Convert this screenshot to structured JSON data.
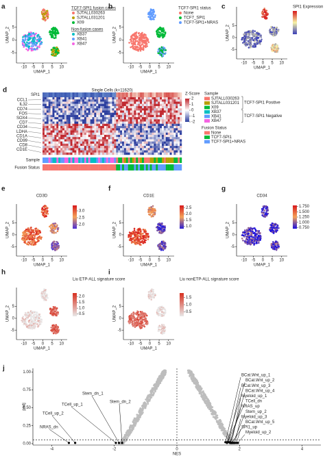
{
  "panels": {
    "a": {
      "letter": "a",
      "xlabel": "UMAP_1",
      "ylabel": "UMAP_2",
      "xlim": [
        -14,
        13
      ],
      "ylim": [
        -9,
        13
      ],
      "xticks": [
        -10,
        -5,
        0,
        5,
        10
      ],
      "yticks": [
        -5,
        0,
        5
      ],
      "legend": [
        {
          "heading": "TCF7-SPI1 fusion cases",
          "items": [
            {
              "name": "SJTALL030263",
              "color": "#f8766d"
            },
            {
              "name": "SJTALL031201",
              "color": "#b79f00"
            },
            {
              "name": "X09",
              "color": "#00ba38"
            }
          ]
        },
        {
          "heading": "Non-fusion cases",
          "items": [
            {
              "name": "XB37",
              "color": "#00bfc4"
            },
            {
              "name": "XB41",
              "color": "#619cff"
            },
            {
              "name": "XB47",
              "color": "#f564e3"
            }
          ]
        }
      ]
    },
    "b": {
      "letter": "b",
      "xlabel": "UMAP_1",
      "ylabel": "UMAP_2",
      "xlim": [
        -14,
        13
      ],
      "ylim": [
        -9,
        13
      ],
      "xticks": [
        -10,
        -5,
        0,
        5,
        10
      ],
      "yticks": [
        -5,
        0,
        5
      ],
      "legend": [
        {
          "heading": "TCF7-SPI1 status",
          "items": [
            {
              "name": "None",
              "color": "#f8766d"
            },
            {
              "name": "TCF7_SPI1",
              "color": "#00ba38"
            },
            {
              "name": "TCF7-SPI1+NRAS",
              "color": "#619cff"
            }
          ]
        }
      ]
    },
    "c": {
      "letter": "c",
      "xlabel": "UMAP_1",
      "ylabel": "UMAP_2",
      "xlim": [
        -14,
        13
      ],
      "ylim": [
        -9,
        13
      ],
      "xticks": [
        -10,
        -5,
        0,
        5,
        10
      ],
      "yticks": [
        -5,
        0,
        5
      ],
      "colorbar": {
        "title": "SPI1 Expression",
        "colors": [
          "#3b3fb8",
          "#f6f3a6",
          "#d7191c"
        ]
      }
    },
    "e": {
      "letter": "e",
      "title": "CD3D",
      "xlabel": "UMAP_1",
      "ylabel": "UMAP_2",
      "xlim": [
        -14,
        13
      ],
      "ylim": [
        -9,
        13
      ],
      "xticks": [
        -10,
        -5,
        0,
        5,
        10
      ],
      "yticks": [
        -5,
        0,
        5
      ],
      "colorbar": {
        "lim": [
          1.7,
          3.4
        ],
        "ticks": [
          {
            "value": 2.0,
            "label": "2.0"
          },
          {
            "value": 2.5,
            "label": "2.5"
          },
          {
            "value": 3.0,
            "label": "3.0"
          }
        ],
        "colors": [
          "#4b2fd6",
          "#f4a259",
          "#d7191c"
        ]
      }
    },
    "f": {
      "letter": "f",
      "title": "CD1E",
      "xlabel": "UMAP_1",
      "ylabel": "UMAP_2",
      "xlim": [
        -14,
        13
      ],
      "ylim": [
        -9,
        13
      ],
      "xticks": [
        -10,
        -5,
        0,
        5,
        10
      ],
      "yticks": [
        -5,
        0,
        5
      ],
      "colorbar": {
        "lim": [
          0.8,
          2.7
        ],
        "ticks": [
          {
            "value": 1.0,
            "label": "1.0"
          },
          {
            "value": 1.5,
            "label": "1.5"
          },
          {
            "value": 2.0,
            "label": "2.0"
          },
          {
            "value": 2.5,
            "label": "2.5"
          }
        ],
        "colors": [
          "#2a1fd6",
          "#f4a259",
          "#d7191c"
        ]
      }
    },
    "g": {
      "letter": "g",
      "title": "CD34",
      "xlabel": "UMAP_1",
      "ylabel": "UMAP_2",
      "xlim": [
        -14,
        13
      ],
      "ylim": [
        -9,
        13
      ],
      "xticks": [
        -10,
        -5,
        0,
        5,
        10
      ],
      "yticks": [
        -5,
        0,
        5
      ],
      "colorbar": {
        "lim": [
          0.7,
          1.8
        ],
        "ticks": [
          {
            "value": 0.75,
            "label": "0.750"
          },
          {
            "value": 1.0,
            "label": "1.000"
          },
          {
            "value": 1.25,
            "label": "1.250"
          },
          {
            "value": 1.5,
            "label": "1.500"
          },
          {
            "value": 1.75,
            "label": "1.750"
          }
        ],
        "colors": [
          "#1a10e0",
          "#f4a259",
          "#d7191c"
        ]
      }
    },
    "h": {
      "letter": "h",
      "title": "Liu ETP-ALL signature score",
      "xlabel": "UMAP_1",
      "ylabel": "UMAP_2",
      "xlim": [
        -14,
        13
      ],
      "ylim": [
        -9,
        13
      ],
      "xticks": [
        -10,
        -5,
        0,
        5,
        10
      ],
      "yticks": [
        -5,
        0,
        5
      ],
      "colorbar": {
        "lim": [
          0.3,
          2.3
        ],
        "ticks": [
          {
            "value": 0.5,
            "label": "0.5"
          },
          {
            "value": 1.0,
            "label": "1.0"
          },
          {
            "value": 1.5,
            "label": "1.5"
          },
          {
            "value": 2.0,
            "label": "2.0"
          }
        ],
        "colors": [
          "#e8e8e8",
          "#d7301f"
        ]
      }
    },
    "i": {
      "letter": "i",
      "title": "Liu nonETP-ALL signature score",
      "xlabel": "UMAP_1",
      "ylabel": "UMAP_2",
      "xlim": [
        -14,
        13
      ],
      "ylim": [
        -9,
        13
      ],
      "xticks": [
        -10,
        -5,
        0,
        5,
        10
      ],
      "yticks": [
        -5,
        0,
        5
      ],
      "colorbar": {
        "lim": [
          0.2,
          1.8
        ],
        "ticks": [
          0.5,
          {
            "value": 1.0,
            "label": "1.0"
          },
          1.5
        ],
        "colors": [
          "#e8e8e8",
          "#d7301f"
        ]
      }
    }
  },
  "heatmap": {
    "letter": "d",
    "title": "Single Cells (k=11620)",
    "top_row": "SPI1",
    "genes": [
      "CCL1",
      "IL32",
      "CD74",
      "FOS",
      "SOX4",
      "CD7",
      "CD34",
      "LDHA",
      "CD1A",
      "CD99",
      "CD8",
      "CD1E"
    ],
    "row_labels": [
      "Sample",
      "Fusion Status"
    ],
    "zscore": {
      "title": "Z-Score",
      "ticks": [
        2,
        1,
        0,
        -1,
        -2
      ]
    },
    "sample_legend": {
      "title": "Sample",
      "items": [
        {
          "name": "SJTALL030263",
          "color": "#f8766d"
        },
        {
          "name": "SJTALL031201",
          "color": "#b79f00"
        },
        {
          "name": "X09",
          "color": "#00ba38"
        },
        {
          "name": "XB37",
          "color": "#00bfc4"
        },
        {
          "name": "XB41",
          "color": "#619cff"
        },
        {
          "name": "XB47",
          "color": "#f564e3"
        }
      ],
      "groups": [
        "TCF7-SPI1 Positive",
        "TCF7-SPI1 Negative"
      ]
    },
    "fusion_legend": {
      "title": "Fusion Status",
      "items": [
        {
          "name": "None",
          "color": "#f8766d"
        },
        {
          "name": "TCF7-SPI1",
          "color": "#00ba38"
        },
        {
          "name": "TCF7-SPI1+NRAS",
          "color": "#619cff"
        }
      ]
    }
  },
  "volcano": {
    "letter": "j",
    "xlabel": "NES",
    "ylabel": "padj",
    "xlim": [
      -4.6,
      4.6
    ],
    "ylim": [
      -0.02,
      1.05
    ],
    "xticks": [
      -4,
      -2,
      0,
      2,
      4
    ],
    "yticks": [
      {
        "value": 0,
        "label": "0.00"
      },
      {
        "value": 0.25,
        "label": "0.25"
      },
      {
        "value": 0.5,
        "label": "0.50"
      },
      {
        "value": 0.75,
        "label": "0.75"
      },
      {
        "value": 1,
        "label": "1.00"
      }
    ],
    "threshold": 0.05,
    "points": [
      {
        "label": "NRAS_dn",
        "nes": -3.45,
        "padj": 0.01
      },
      {
        "label": "TCell_up_2",
        "nes": -3.25,
        "padj": 0.01
      },
      {
        "label": "TCell_up_1",
        "nes": -1.95,
        "padj": 0.01
      },
      {
        "label": "Stem_dn_1",
        "nes": -1.85,
        "padj": 0.01
      },
      {
        "label": "Stem_dn_2",
        "nes": -1.75,
        "padj": 0.01
      },
      {
        "label": "BCat.Wnt_up_1",
        "nes": 1.55,
        "padj": 0.02
      },
      {
        "label": "BCat.Wnt_up_2",
        "nes": 1.6,
        "padj": 0.02
      },
      {
        "label": "BCat.Wnt_up_3",
        "nes": 1.65,
        "padj": 0.02
      },
      {
        "label": "BCat.Wnt_up_4",
        "nes": 1.7,
        "padj": 0.02
      },
      {
        "label": "Myeloid_up_1",
        "nes": 1.75,
        "padj": 0.01
      },
      {
        "label": "TCell_dn",
        "nes": 1.6,
        "padj": 0.01
      },
      {
        "label": "NRAS_up",
        "nes": 1.7,
        "padj": 0.01
      },
      {
        "label": "Stem_up_2",
        "nes": 1.8,
        "padj": 0.01
      },
      {
        "label": "Myeloid_up_3",
        "nes": 1.85,
        "padj": 0.01
      },
      {
        "label": "BCat.Wnt_up_5",
        "nes": 1.75,
        "padj": 0.01
      },
      {
        "label": "SPI1_up",
        "nes": 1.9,
        "padj": 0.01
      },
      {
        "label": "Myeloid_up_2",
        "nes": 1.95,
        "padj": 0.01
      }
    ]
  }
}
